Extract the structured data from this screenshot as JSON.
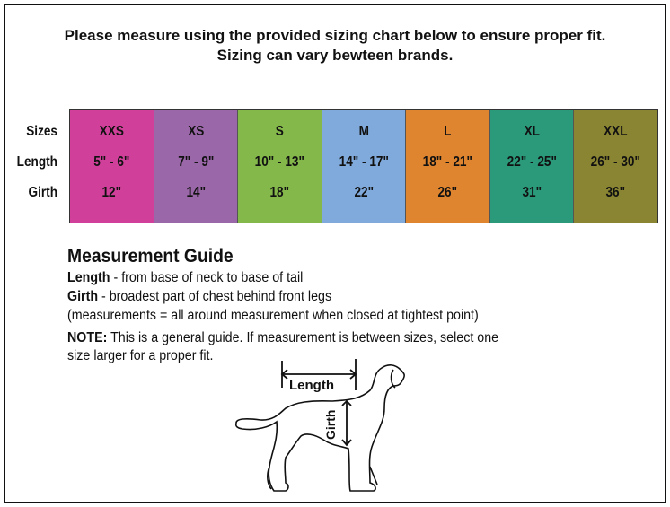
{
  "header": {
    "line1": "Please measure using the provided sizing chart below to ensure proper fit.",
    "line2": "Sizing can vary bewteen brands."
  },
  "row_labels": {
    "sizes": "Sizes",
    "length": "Length",
    "girth": "Girth"
  },
  "sizes": [
    {
      "size": "XXS",
      "length": "5\" - 6\"",
      "girth": "12\"",
      "color": "#d0409a"
    },
    {
      "size": "XS",
      "length": "7\" - 9\"",
      "girth": "14\"",
      "color": "#9a67a8"
    },
    {
      "size": "S",
      "length": "10\" - 13\"",
      "girth": "18\"",
      "color": "#84b84a"
    },
    {
      "size": "M",
      "length": "14\" - 17\"",
      "girth": "22\"",
      "color": "#80aadc"
    },
    {
      "size": "L",
      "length": "18\" - 21\"",
      "girth": "26\"",
      "color": "#e0852f"
    },
    {
      "size": "XL",
      "length": "22\" - 25\"",
      "girth": "31\"",
      "color": "#2a9a7a"
    },
    {
      "size": "XXL",
      "length": "26\" - 30\"",
      "girth": "36\"",
      "color": "#8a8532"
    }
  ],
  "guide": {
    "title": "Measurement Guide",
    "length_term": "Length",
    "length_desc": " - from base of neck to base of tail",
    "girth_term": "Girth",
    "girth_desc": " - broadest part of chest behind front legs",
    "note_paren": "(measurements = all around measurement when closed at tightest point)",
    "note_term": "NOTE:",
    "note_desc": " This is a general guide. If measurement is between sizes, select one",
    "note_line2": "size larger for a proper fit."
  },
  "diagram": {
    "length_label": "Length",
    "girth_label": "Girth",
    "icon": "dog-outline"
  }
}
